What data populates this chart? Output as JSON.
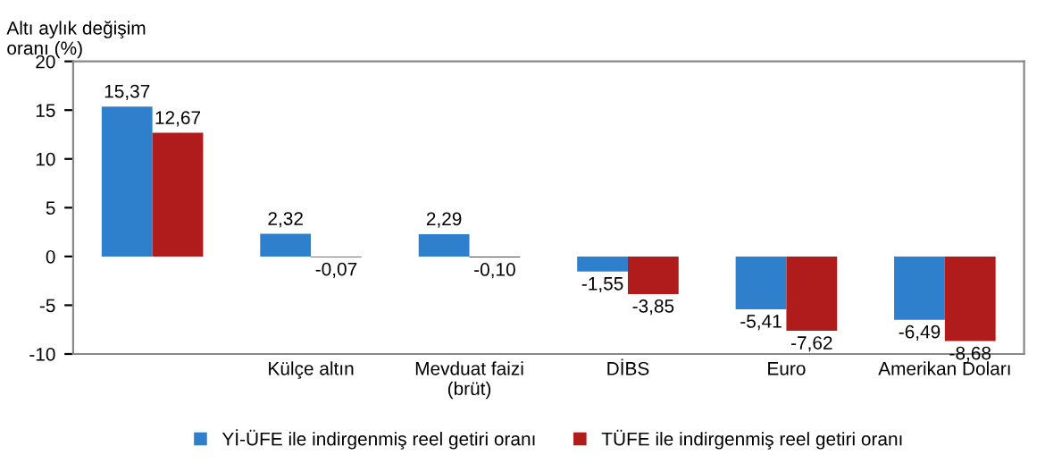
{
  "chart_data": {
    "type": "bar",
    "ylabel": "Altı aylık değişim\noranı (%)",
    "categories": [
      null,
      "Külçe altın",
      "Mevduat faizi\n(brüt)",
      "DİBS",
      "Euro",
      "Amerikan Doları"
    ],
    "series": [
      {
        "name": "Yİ-ÜFE ile indirgenmiş reel getiri oranı",
        "color": "#2e80cc",
        "values": [
          15.37,
          2.32,
          2.29,
          -1.55,
          -5.41,
          -6.49
        ],
        "value_labels": [
          "15,37",
          "2,32",
          "2,29",
          "-1,55",
          "-5,41",
          "-6,49"
        ]
      },
      {
        "name": "TÜFE ile indirgenmiş reel getiri oranı",
        "color": "#b01b1b",
        "values": [
          12.67,
          -0.07,
          -0.1,
          -3.85,
          -7.62,
          -8.68
        ],
        "value_labels": [
          "12,67",
          "-0,07",
          "-0,10",
          "-3,85",
          "-7,62",
          "-8,68"
        ]
      }
    ],
    "ylim": [
      -10,
      20
    ],
    "yticks": [
      -10,
      -5,
      0,
      5,
      10,
      15,
      20
    ],
    "grid": false,
    "legend": "bottom"
  }
}
